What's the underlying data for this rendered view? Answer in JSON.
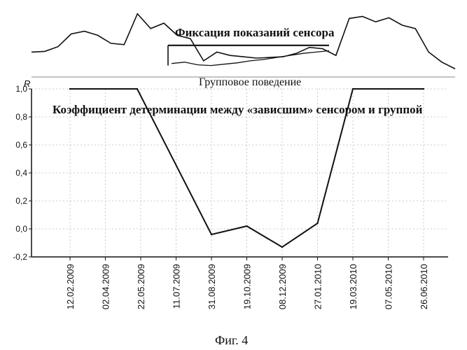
{
  "figure_caption": "Фиг. 4",
  "chart_data": [
    {
      "type": "line",
      "title": "",
      "annotations": [
        "Фиксация показаний сенсора",
        "Групповое поведение"
      ],
      "series": [
        {
          "values": [
            0.35,
            0.36,
            0.43,
            0.62,
            0.66,
            0.6,
            0.48,
            0.46,
            0.92,
            0.7,
            0.78,
            0.6,
            0.55,
            0.22,
            0.35,
            0.3,
            0.28,
            0.26,
            0.27,
            0.28,
            0.33,
            0.42,
            0.4,
            0.3,
            0.85,
            0.88,
            0.8,
            0.86,
            0.75,
            0.7,
            0.35,
            0.2,
            0.1
          ]
        },
        {
          "values": [
            0.45,
            0.45,
            0.45,
            0.45,
            0.45,
            0.45,
            0.45,
            0.45,
            0.45,
            0.45,
            0.45,
            0.45,
            0.45
          ]
        },
        {
          "values": [
            0.18,
            0.2,
            0.16,
            0.15,
            0.17,
            0.19,
            0.22,
            0.24,
            0.27,
            0.3,
            0.33,
            0.35,
            0.37
          ]
        }
      ]
    },
    {
      "type": "line",
      "title": "Коэффициент детерминации между «зависшим» сенсором и группой",
      "ylabel": "R",
      "xlabel": "",
      "ylim": [
        -0.2,
        1.0
      ],
      "yticks": [
        "1,0",
        "0,8",
        "0,6",
        "0,4",
        "0,2",
        "0,0",
        "-0,2"
      ],
      "ytick_values": [
        1.0,
        0.8,
        0.6,
        0.4,
        0.2,
        0.0,
        -0.2
      ],
      "categories": [
        "12.02.2009",
        "02.04.2009",
        "22.05.2009",
        "11.07.2009",
        "31.08.2009",
        "19.10.2009",
        "08.12.2009",
        "27.01.2010",
        "19.03.2010",
        "07.05.2010",
        "26.06.2010"
      ],
      "series": [
        {
          "x": [
            0.0,
            1.9,
            4.0,
            5.0,
            6.0,
            7.0,
            8.0,
            10.0
          ],
          "values": [
            1.0,
            1.0,
            -0.04,
            0.02,
            -0.13,
            0.04,
            1.0,
            1.0
          ]
        }
      ]
    }
  ]
}
